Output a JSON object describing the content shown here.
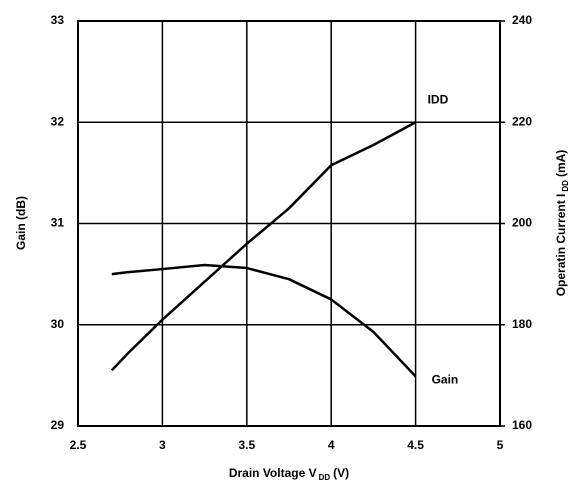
{
  "chart_data": {
    "type": "line",
    "x_label": {
      "text": "Drain Voltage V",
      "sub": "DD",
      "unit": "(V)"
    },
    "y_label": "Gain (dB)",
    "y2_label": {
      "text": "Operatin Current  I",
      "sub": "DD",
      "unit": "(mA)"
    },
    "x": [
      2.7,
      2.8,
      3.0,
      3.25,
      3.5,
      3.75,
      4.0,
      4.25,
      4.5
    ],
    "series": [
      {
        "name": "Gain",
        "color": "#000000",
        "values": [
          30.5,
          30.52,
          30.55,
          30.59,
          30.56,
          30.45,
          30.25,
          29.93,
          29.49
        ]
      },
      {
        "name": "IDD",
        "color": "#000000",
        "axis": "y2",
        "values": [
          171,
          174.5,
          181,
          188.5,
          196,
          203,
          211.5,
          215.5,
          220
        ]
      }
    ],
    "xlim": [
      2.5,
      5
    ],
    "xticks": [
      2.5,
      3,
      3.5,
      4,
      4.5,
      5
    ],
    "ylim": [
      29,
      33
    ],
    "yticks": [
      29,
      30,
      31,
      32,
      33
    ],
    "y2lim": [
      160,
      240
    ],
    "y2ticks": [
      160,
      180,
      200,
      220,
      240
    ],
    "grid": true
  }
}
